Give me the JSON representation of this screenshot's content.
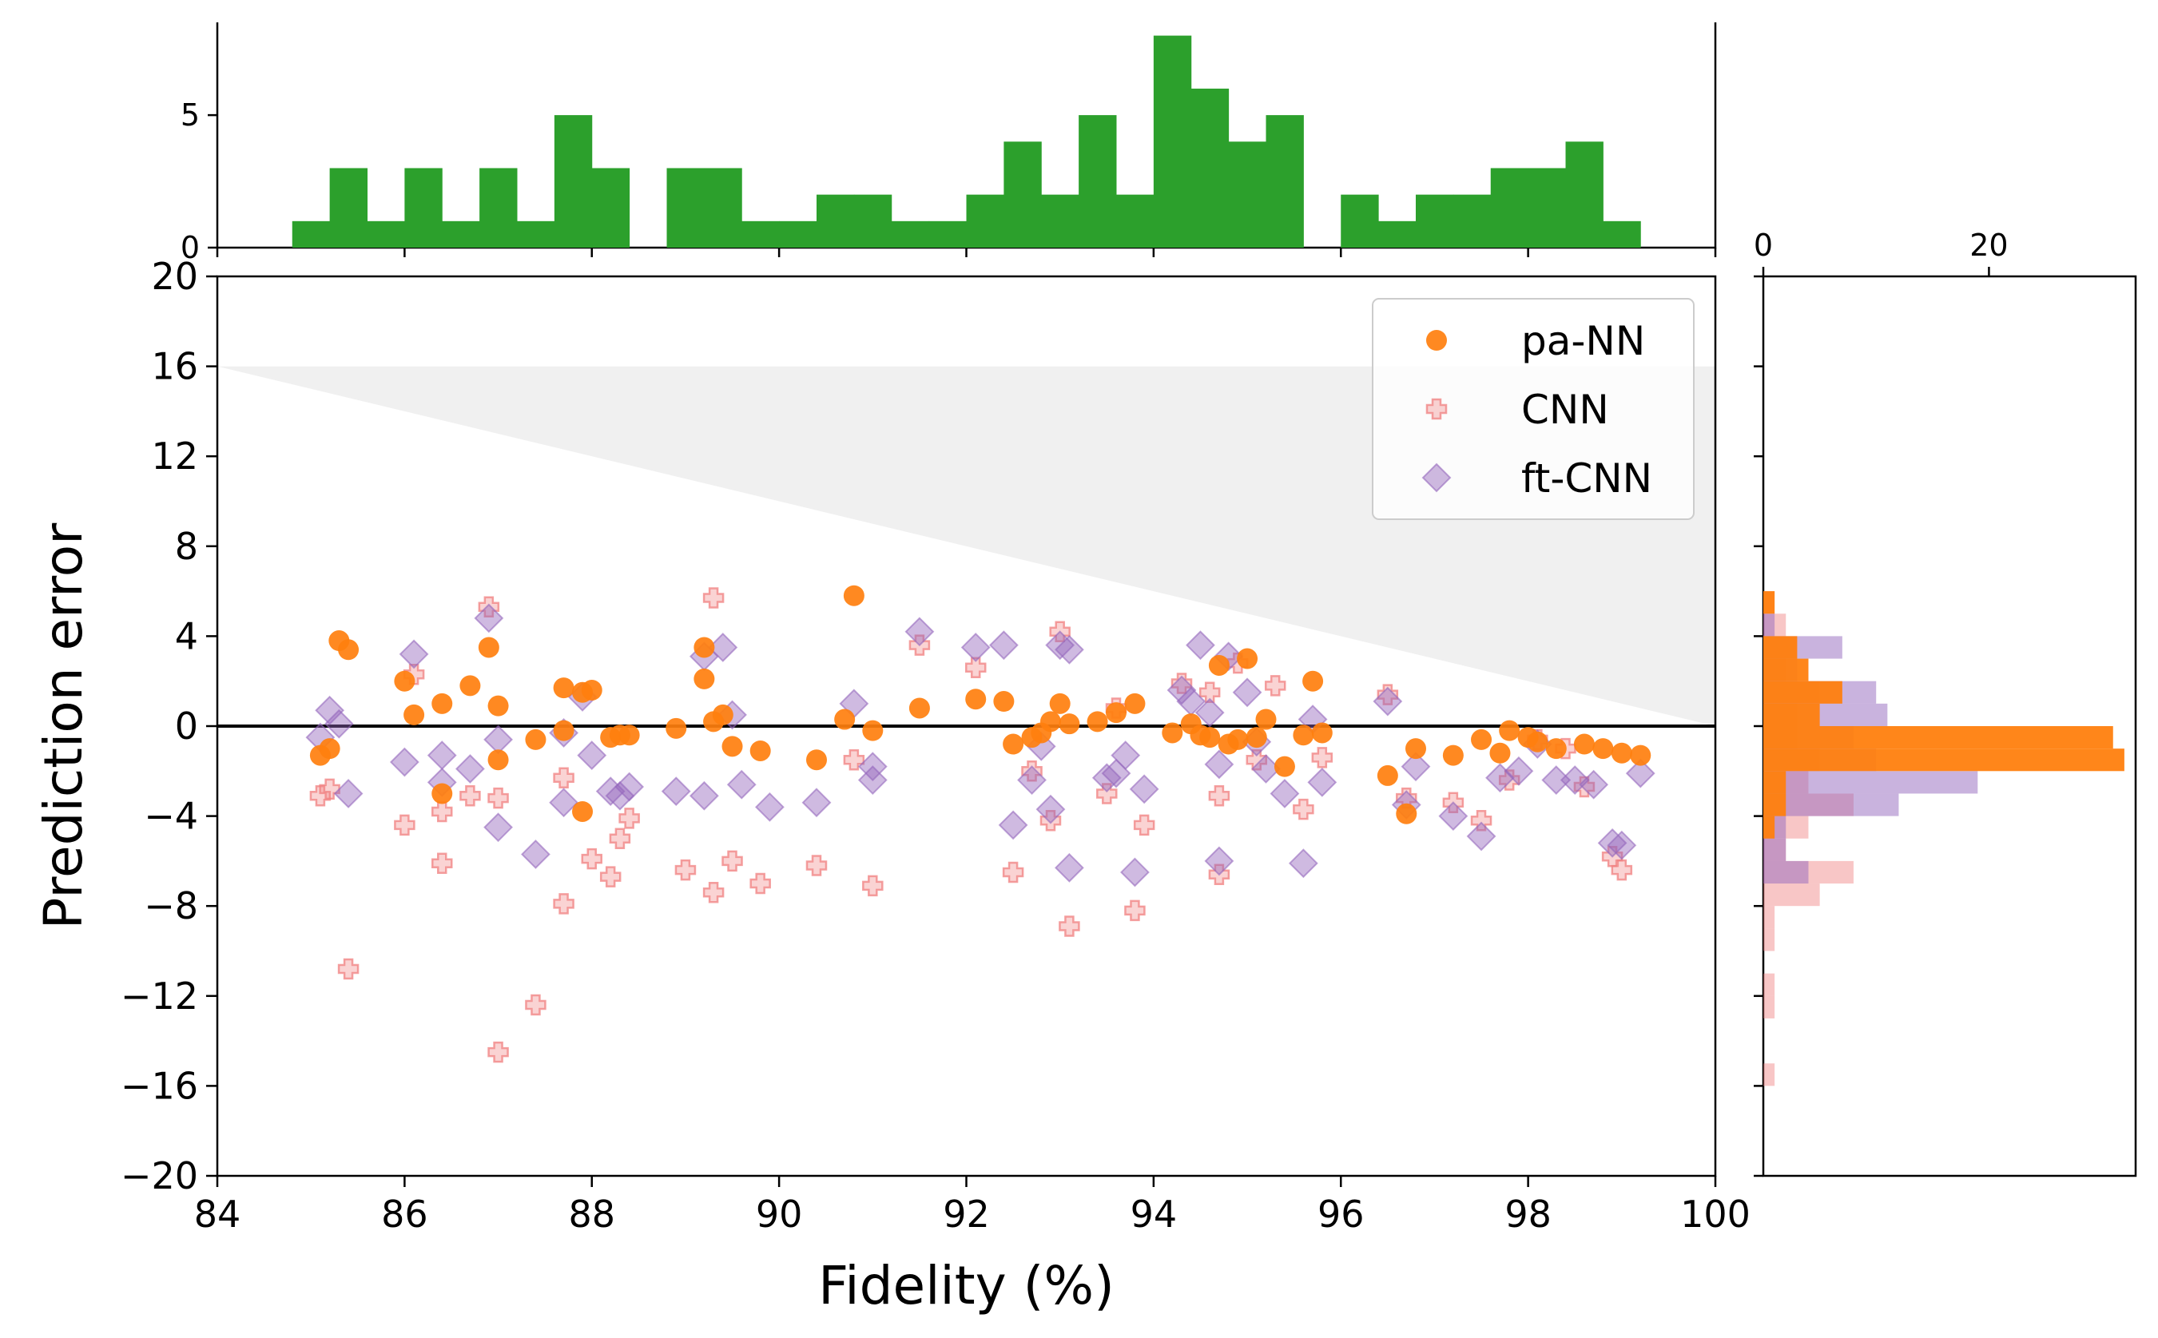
{
  "chart_data": {
    "type": "scatter",
    "xlabel": "Fidelity (%)",
    "ylabel": "Prediction error",
    "xlim": [
      84,
      100
    ],
    "ylim": [
      -20,
      20
    ],
    "x_ticks": [
      "84",
      "86",
      "88",
      "90",
      "92",
      "94",
      "96",
      "98",
      "100"
    ],
    "y_ticks": [
      "−20",
      "−16",
      "−12",
      "−8",
      "−4",
      "0",
      "4",
      "8",
      "12",
      "16",
      "20"
    ],
    "zero_line": 0,
    "shaded_region": {
      "x": [
        84,
        100
      ],
      "upper": 16,
      "lower_from": 16,
      "lower_to": 0
    },
    "legend": {
      "placement": "top-right",
      "entries": [
        "pa-NN",
        "CNN",
        "ft-CNN"
      ]
    },
    "colors": {
      "pa-NN": "#ff7f0e",
      "CNN": "#f08080",
      "ft-CNN": "#9467bd",
      "hist_top": "#2ca02c"
    },
    "series": [
      {
        "name": "pa-NN",
        "marker": "circle",
        "points": [
          [
            85.1,
            -1.3
          ],
          [
            85.2,
            -1.0
          ],
          [
            85.3,
            3.8
          ],
          [
            85.4,
            3.4
          ],
          [
            86.0,
            2.0
          ],
          [
            86.1,
            0.5
          ],
          [
            86.4,
            1.0
          ],
          [
            86.4,
            -3.0
          ],
          [
            86.7,
            1.8
          ],
          [
            86.9,
            3.5
          ],
          [
            87.0,
            0.9
          ],
          [
            87.0,
            -1.5
          ],
          [
            87.4,
            -0.6
          ],
          [
            87.7,
            1.7
          ],
          [
            87.7,
            -0.2
          ],
          [
            87.9,
            1.5
          ],
          [
            87.9,
            -3.8
          ],
          [
            88.0,
            1.6
          ],
          [
            88.2,
            -0.5
          ],
          [
            88.3,
            -0.4
          ],
          [
            88.4,
            -0.4
          ],
          [
            88.9,
            -0.1
          ],
          [
            89.2,
            3.5
          ],
          [
            89.2,
            2.1
          ],
          [
            89.3,
            0.2
          ],
          [
            89.4,
            0.5
          ],
          [
            89.5,
            -0.9
          ],
          [
            89.8,
            -1.1
          ],
          [
            90.4,
            -1.5
          ],
          [
            90.7,
            0.3
          ],
          [
            90.8,
            5.8
          ],
          [
            91.0,
            -0.2
          ],
          [
            91.5,
            0.8
          ],
          [
            92.1,
            1.2
          ],
          [
            92.4,
            1.1
          ],
          [
            92.5,
            -0.8
          ],
          [
            92.7,
            -0.5
          ],
          [
            92.8,
            -0.3
          ],
          [
            92.9,
            0.2
          ],
          [
            93.0,
            1.0
          ],
          [
            93.1,
            0.1
          ],
          [
            93.4,
            0.2
          ],
          [
            93.6,
            0.6
          ],
          [
            93.8,
            1.0
          ],
          [
            94.2,
            -0.3
          ],
          [
            94.4,
            0.1
          ],
          [
            94.5,
            -0.4
          ],
          [
            94.6,
            -0.5
          ],
          [
            94.7,
            2.7
          ],
          [
            94.8,
            -0.8
          ],
          [
            94.9,
            -0.6
          ],
          [
            95.0,
            3.0
          ],
          [
            95.1,
            -0.5
          ],
          [
            95.2,
            0.3
          ],
          [
            95.4,
            -1.8
          ],
          [
            95.6,
            -0.4
          ],
          [
            95.7,
            2.0
          ],
          [
            95.8,
            -0.3
          ],
          [
            96.5,
            -2.2
          ],
          [
            96.7,
            -3.9
          ],
          [
            96.8,
            -1.0
          ],
          [
            97.2,
            -1.3
          ],
          [
            97.5,
            -0.6
          ],
          [
            97.7,
            -1.2
          ],
          [
            97.8,
            -0.2
          ],
          [
            98.0,
            -0.5
          ],
          [
            98.1,
            -0.7
          ],
          [
            98.3,
            -1.0
          ],
          [
            98.6,
            -0.8
          ],
          [
            98.8,
            -1.0
          ],
          [
            99.0,
            -1.2
          ],
          [
            99.2,
            -1.3
          ]
        ]
      },
      {
        "name": "CNN",
        "marker": "plus",
        "points": [
          [
            85.1,
            -3.1
          ],
          [
            85.2,
            -2.8
          ],
          [
            85.4,
            -10.8
          ],
          [
            86.0,
            -4.4
          ],
          [
            86.1,
            2.3
          ],
          [
            86.4,
            -3.8
          ],
          [
            86.4,
            -6.1
          ],
          [
            86.7,
            -3.1
          ],
          [
            86.9,
            5.3
          ],
          [
            87.0,
            -3.2
          ],
          [
            87.0,
            -14.5
          ],
          [
            87.4,
            -12.4
          ],
          [
            87.7,
            -2.3
          ],
          [
            87.7,
            -7.9
          ],
          [
            88.0,
            -5.9
          ],
          [
            88.2,
            -6.7
          ],
          [
            88.3,
            -5.0
          ],
          [
            88.4,
            -4.1
          ],
          [
            89.0,
            -6.4
          ],
          [
            89.3,
            -7.4
          ],
          [
            89.3,
            5.7
          ],
          [
            89.5,
            -6.0
          ],
          [
            89.8,
            -7.0
          ],
          [
            90.4,
            -6.2
          ],
          [
            90.8,
            -1.5
          ],
          [
            91.0,
            -7.1
          ],
          [
            91.5,
            3.6
          ],
          [
            92.1,
            2.6
          ],
          [
            92.5,
            -6.5
          ],
          [
            92.7,
            -2.0
          ],
          [
            92.9,
            -4.2
          ],
          [
            93.0,
            4.2
          ],
          [
            93.1,
            -8.9
          ],
          [
            93.5,
            -3.0
          ],
          [
            93.6,
            0.8
          ],
          [
            93.8,
            -8.2
          ],
          [
            93.9,
            -4.4
          ],
          [
            94.3,
            1.9
          ],
          [
            94.6,
            1.5
          ],
          [
            94.7,
            -6.6
          ],
          [
            94.7,
            -3.1
          ],
          [
            94.9,
            2.8
          ],
          [
            95.1,
            -1.5
          ],
          [
            95.3,
            1.8
          ],
          [
            95.6,
            -3.7
          ],
          [
            95.8,
            -1.4
          ],
          [
            96.5,
            1.4
          ],
          [
            96.7,
            -3.2
          ],
          [
            97.2,
            -3.4
          ],
          [
            97.5,
            -4.2
          ],
          [
            97.8,
            -2.4
          ],
          [
            98.1,
            -0.6
          ],
          [
            98.4,
            -1.0
          ],
          [
            98.6,
            -2.7
          ],
          [
            98.9,
            -5.8
          ],
          [
            99.0,
            -6.4
          ]
        ]
      },
      {
        "name": "ft-CNN",
        "marker": "diamond",
        "points": [
          [
            85.1,
            -0.5
          ],
          [
            85.2,
            0.7
          ],
          [
            85.3,
            0.1
          ],
          [
            85.4,
            -3.0
          ],
          [
            86.0,
            -1.6
          ],
          [
            86.1,
            3.2
          ],
          [
            86.4,
            -1.3
          ],
          [
            86.4,
            -2.5
          ],
          [
            86.7,
            -1.9
          ],
          [
            86.9,
            4.8
          ],
          [
            87.0,
            -0.6
          ],
          [
            87.0,
            -4.5
          ],
          [
            87.4,
            -5.7
          ],
          [
            87.7,
            -0.3
          ],
          [
            87.7,
            -3.4
          ],
          [
            87.9,
            1.3
          ],
          [
            88.0,
            -1.3
          ],
          [
            88.2,
            -2.9
          ],
          [
            88.3,
            -3.1
          ],
          [
            88.4,
            -2.7
          ],
          [
            88.9,
            -2.9
          ],
          [
            89.2,
            3.1
          ],
          [
            89.2,
            -3.1
          ],
          [
            89.4,
            3.5
          ],
          [
            89.5,
            0.5
          ],
          [
            89.6,
            -2.6
          ],
          [
            89.9,
            -3.6
          ],
          [
            90.4,
            -3.4
          ],
          [
            90.8,
            1.0
          ],
          [
            91.0,
            -2.4
          ],
          [
            91.0,
            -1.8
          ],
          [
            91.5,
            4.2
          ],
          [
            92.1,
            3.5
          ],
          [
            92.4,
            3.6
          ],
          [
            92.5,
            -4.4
          ],
          [
            92.7,
            -2.4
          ],
          [
            92.8,
            -0.9
          ],
          [
            92.9,
            -3.7
          ],
          [
            93.0,
            3.6
          ],
          [
            93.1,
            3.4
          ],
          [
            93.1,
            -6.3
          ],
          [
            93.5,
            -2.3
          ],
          [
            93.6,
            -2.1
          ],
          [
            93.7,
            -1.3
          ],
          [
            93.8,
            -6.5
          ],
          [
            93.9,
            -2.8
          ],
          [
            94.3,
            1.6
          ],
          [
            94.4,
            1.1
          ],
          [
            94.5,
            3.6
          ],
          [
            94.6,
            0.6
          ],
          [
            94.7,
            -1.7
          ],
          [
            94.7,
            -6.0
          ],
          [
            94.8,
            3.1
          ],
          [
            95.0,
            1.5
          ],
          [
            95.1,
            -0.7
          ],
          [
            95.2,
            -1.9
          ],
          [
            95.4,
            -3.0
          ],
          [
            95.6,
            -6.1
          ],
          [
            95.7,
            0.3
          ],
          [
            95.8,
            -2.5
          ],
          [
            96.5,
            1.1
          ],
          [
            96.7,
            -3.5
          ],
          [
            96.8,
            -1.8
          ],
          [
            97.2,
            -4.0
          ],
          [
            97.5,
            -4.9
          ],
          [
            97.7,
            -2.3
          ],
          [
            97.9,
            -2.0
          ],
          [
            98.1,
            -0.8
          ],
          [
            98.3,
            -2.4
          ],
          [
            98.5,
            -2.4
          ],
          [
            98.7,
            -2.6
          ],
          [
            98.9,
            -5.2
          ],
          [
            99.0,
            -5.3
          ],
          [
            99.2,
            -2.1
          ]
        ]
      }
    ],
    "top_histogram": {
      "bin_width": 0.4,
      "start": 84.8,
      "counts": [
        1,
        3,
        1,
        3,
        1,
        3,
        1,
        5,
        3,
        0,
        3,
        3,
        1,
        1,
        2,
        2,
        1,
        1,
        2,
        4,
        2,
        5,
        2,
        8,
        6,
        4,
        5,
        0,
        2,
        1,
        2,
        2,
        3,
        3,
        4,
        1
      ],
      "yticks": [
        "0",
        "5"
      ],
      "ylim": [
        0,
        8.5
      ]
    },
    "right_histograms": {
      "xticks": [
        "0",
        "20"
      ],
      "xlim": [
        0,
        33
      ],
      "bin_height": 1.0,
      "series": [
        {
          "name": "CNN",
          "bins": [
            [
              -15.5,
              1
            ],
            [
              -12.5,
              1
            ],
            [
              -11.5,
              1
            ],
            [
              -9.5,
              1
            ],
            [
              -8.5,
              1
            ],
            [
              -7.5,
              5
            ],
            [
              -6.5,
              8
            ],
            [
              -5.5,
              2
            ],
            [
              -4.5,
              4
            ],
            [
              -3.5,
              8
            ],
            [
              -2.5,
              4
            ],
            [
              -1.5,
              5
            ],
            [
              -0.5,
              3
            ],
            [
              0.5,
              3
            ],
            [
              1.5,
              5
            ],
            [
              2.5,
              2
            ],
            [
              3.5,
              3
            ],
            [
              4.5,
              2
            ],
            [
              5.5,
              1
            ]
          ]
        },
        {
          "name": "ft-CNN",
          "bins": [
            [
              -6.5,
              4
            ],
            [
              -5.5,
              2
            ],
            [
              -4.5,
              2
            ],
            [
              -3.5,
              12
            ],
            [
              -2.5,
              19
            ],
            [
              -1.5,
              10
            ],
            [
              -0.5,
              8
            ],
            [
              0.5,
              11
            ],
            [
              1.5,
              10
            ],
            [
              2.5,
              3
            ],
            [
              3.5,
              7
            ],
            [
              4.5,
              1
            ]
          ]
        },
        {
          "name": "pa-NN",
          "bins": [
            [
              -4.5,
              1
            ],
            [
              -3.5,
              2
            ],
            [
              -2.5,
              2
            ],
            [
              -1.5,
              32
            ],
            [
              -0.5,
              31
            ],
            [
              0.5,
              5
            ],
            [
              1.5,
              7
            ],
            [
              2.5,
              4
            ],
            [
              3.5,
              3
            ],
            [
              5.5,
              1
            ]
          ]
        }
      ]
    }
  }
}
